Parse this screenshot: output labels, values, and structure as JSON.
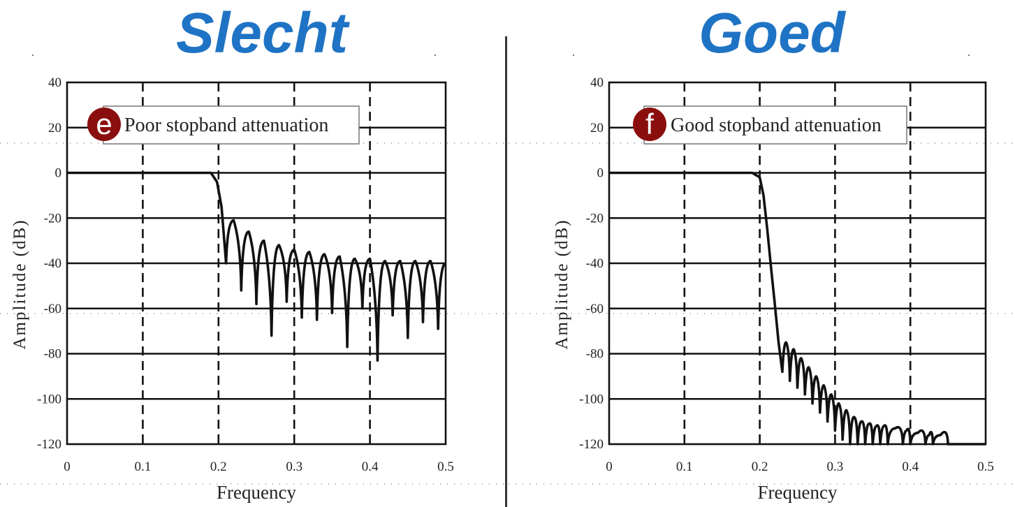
{
  "headings": {
    "left": "Slecht",
    "right": "Goed"
  },
  "colors": {
    "heading": "#1f73c4",
    "badge": "#8b0e0e",
    "curve": "#111111",
    "grid": "#111111"
  },
  "chart_data": [
    {
      "type": "line",
      "badge": "e",
      "annotation": "Poor stopband attenuation",
      "xlabel": "Frequency",
      "ylabel": "Amplitude (dB)",
      "xlim": [
        0,
        0.5
      ],
      "ylim": [
        -120,
        40
      ],
      "x_ticks": [
        "0",
        "0.1",
        "0.2",
        "0.3",
        "0.4",
        "0.5"
      ],
      "y_ticks": [
        "40",
        "20",
        "0",
        "-20",
        "-40",
        "-60",
        "-80",
        "-100",
        "-120"
      ],
      "grid": true,
      "series": [
        {
          "passband_edge": 0.19,
          "first_null": 0.21,
          "lobe_peaks": [
            [
              0.22,
              -21
            ],
            [
              0.24,
              -26
            ],
            [
              0.26,
              -30
            ],
            [
              0.28,
              -32
            ],
            [
              0.3,
              -34
            ],
            [
              0.32,
              -35
            ],
            [
              0.34,
              -36
            ],
            [
              0.36,
              -37
            ],
            [
              0.38,
              -38
            ],
            [
              0.4,
              -38
            ],
            [
              0.42,
              -39
            ],
            [
              0.44,
              -39
            ],
            [
              0.46,
              -39
            ],
            [
              0.48,
              -39
            ],
            [
              0.5,
              -40
            ]
          ],
          "nulls": [
            [
              0.21,
              -40
            ],
            [
              0.23,
              -52
            ],
            [
              0.25,
              -58
            ],
            [
              0.27,
              -72
            ],
            [
              0.29,
              -57
            ],
            [
              0.31,
              -64
            ],
            [
              0.33,
              -65
            ],
            [
              0.35,
              -62
            ],
            [
              0.37,
              -77
            ],
            [
              0.39,
              -60
            ],
            [
              0.41,
              -83
            ],
            [
              0.43,
              -63
            ],
            [
              0.45,
              -73
            ],
            [
              0.47,
              -66
            ],
            [
              0.49,
              -69
            ]
          ]
        }
      ]
    },
    {
      "type": "line",
      "badge": "f",
      "annotation": "Good stopband attenuation",
      "xlabel": "Frequency",
      "ylabel": "Amplitude (dB)",
      "xlim": [
        0,
        0.5
      ],
      "ylim": [
        -120,
        40
      ],
      "x_ticks": [
        "0",
        "0.1",
        "0.2",
        "0.3",
        "0.4",
        "0.5"
      ],
      "y_ticks": [
        "40",
        "20",
        "0",
        "-20",
        "-40",
        "-60",
        "-80",
        "-100",
        "-120"
      ],
      "grid": true,
      "series": [
        {
          "passband_edge": 0.19,
          "transition": [
            [
              0.19,
              0
            ],
            [
              0.2,
              -2
            ],
            [
              0.205,
              -10
            ],
            [
              0.21,
              -25
            ],
            [
              0.215,
              -42
            ],
            [
              0.22,
              -58
            ],
            [
              0.225,
              -75
            ],
            [
              0.23,
              -88
            ]
          ],
          "lobe_peaks": [
            [
              0.235,
              -75
            ],
            [
              0.245,
              -78
            ],
            [
              0.255,
              -82
            ],
            [
              0.265,
              -86
            ],
            [
              0.275,
              -90
            ],
            [
              0.285,
              -94
            ],
            [
              0.295,
              -98
            ],
            [
              0.305,
              -102
            ],
            [
              0.315,
              -105
            ],
            [
              0.325,
              -108
            ],
            [
              0.335,
              -110
            ],
            [
              0.345,
              -111
            ],
            [
              0.355,
              -112
            ],
            [
              0.365,
              -112
            ],
            [
              0.38,
              -113
            ],
            [
              0.395,
              -114
            ],
            [
              0.41,
              -115
            ],
            [
              0.425,
              -116
            ],
            [
              0.44,
              -116
            ]
          ],
          "nulls": [
            [
              0.24,
              -92
            ],
            [
              0.25,
              -95
            ],
            [
              0.26,
              -98
            ],
            [
              0.27,
              -102
            ],
            [
              0.28,
              -106
            ],
            [
              0.29,
              -110
            ],
            [
              0.3,
              -114
            ],
            [
              0.31,
              -118
            ],
            [
              0.32,
              -120
            ],
            [
              0.33,
              -120
            ],
            [
              0.34,
              -120
            ],
            [
              0.35,
              -120
            ],
            [
              0.36,
              -120
            ],
            [
              0.37,
              -120
            ],
            [
              0.39,
              -120
            ],
            [
              0.4,
              -120
            ],
            [
              0.42,
              -120
            ],
            [
              0.43,
              -120
            ],
            [
              0.45,
              -120
            ]
          ],
          "floor": -120
        }
      ]
    }
  ]
}
